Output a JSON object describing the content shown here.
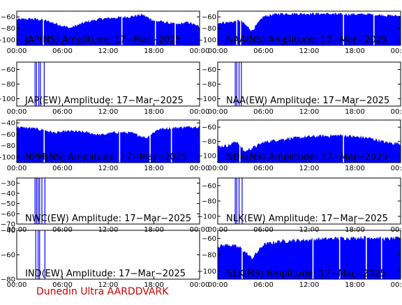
{
  "footer": "Dunedin Ultra AARDDVARK",
  "colors": {
    "trace": "#0000ff",
    "axis": "#000000",
    "footer": "#cc0000"
  },
  "chart_data": [
    {
      "type": "area",
      "title": "JAP(NS) Amplitude: 17-Mar-2025",
      "ylim": [
        -110,
        -50
      ],
      "yticks": [
        -100,
        -80,
        -60
      ],
      "xticks": [
        "00:00",
        "06:00",
        "12:00",
        "18:00",
        "00:00"
      ],
      "x_hours": [
        0,
        2,
        3.5,
        5,
        7,
        9,
        11,
        13,
        15,
        16.5,
        18,
        19.5,
        21,
        22.5,
        24
      ],
      "y": [
        -65,
        -64,
        -66,
        -72,
        -80,
        -70,
        -64,
        -62,
        -60,
        -57,
        -67,
        -70,
        -74,
        -70,
        -78
      ],
      "dropouts_hours": [
        3.5,
        13.8,
        18.2,
        20.8
      ]
    },
    {
      "type": "area",
      "title": "NAA(NS) Amplitude: 17-Mar-2025",
      "ylim": [
        -110,
        -50
      ],
      "yticks": [
        -100,
        -80,
        -60
      ],
      "xticks": [
        "00:00",
        "06:00",
        "12:00",
        "18:00",
        "00:00"
      ],
      "x_hours": [
        0,
        1.5,
        3,
        4.5,
        6,
        8,
        10,
        12,
        14,
        16,
        18,
        20,
        22,
        24
      ],
      "y": [
        -71,
        -70,
        -67,
        -85,
        -60,
        -55,
        -55,
        -55,
        -55,
        -56,
        -56,
        -56,
        -58,
        -59
      ],
      "dropouts_hours": [
        2.5,
        3.0,
        16.5,
        20.5
      ]
    },
    {
      "type": "area",
      "title": "JAP(EW) Amplitude: 17-Mar-2025",
      "ylim": [
        -110,
        -50
      ],
      "yticks": [
        -100,
        -80,
        -60
      ],
      "xticks": [
        "00:00",
        "06:00",
        "12:00",
        "18:00",
        "00:00"
      ],
      "x_hours": [],
      "y": [],
      "dropouts_hours": [],
      "spikes_hours": [
        2.4,
        2.6,
        2.9,
        3.1,
        3.6
      ]
    },
    {
      "type": "area",
      "title": "NAA(EW) Amplitude: 17-Mar-2025",
      "ylim": [
        -110,
        -50
      ],
      "yticks": [
        -100,
        -80,
        -60
      ],
      "xticks": [
        "00:00",
        "06:00",
        "12:00",
        "18:00",
        "00:00"
      ],
      "x_hours": [],
      "y": [],
      "dropouts_hours": [],
      "spikes_hours": [
        2.3,
        2.5,
        2.8,
        3.1
      ]
    },
    {
      "type": "area",
      "title": "NPM(NS) Amplitude: 17-Mar-2025",
      "ylim": [
        -110,
        -35
      ],
      "yticks": [
        -100,
        -80,
        -60,
        -40
      ],
      "xticks": [
        "00:00",
        "06:00",
        "12:00",
        "18:00",
        "00:00"
      ],
      "x_hours": [
        0,
        2,
        3.5,
        5,
        7,
        9,
        11,
        13,
        15,
        17,
        18.5,
        20,
        22,
        24
      ],
      "y": [
        -48,
        -50,
        -53,
        -58,
        -55,
        -57,
        -62,
        -57,
        -58,
        -67,
        -52,
        -50,
        -48,
        -47
      ],
      "dropouts_hours": [
        3.6,
        13.5,
        17.5,
        20.3
      ]
    },
    {
      "type": "area",
      "title": "NDK(NS) Amplitude: 17-Mar-2025",
      "ylim": [
        -110,
        -50
      ],
      "yticks": [
        -100,
        -80,
        -60
      ],
      "xticks": [
        "00:00",
        "06:00",
        "12:00",
        "18:00",
        "00:00"
      ],
      "x_hours": [
        0,
        1.5,
        2.5,
        3.5,
        4.5,
        6,
        8,
        10,
        12,
        14,
        16,
        18,
        20,
        22,
        24
      ],
      "y": [
        -88,
        -86,
        -80,
        -95,
        -90,
        -82,
        -78,
        -76,
        -74,
        -73,
        -72,
        -74,
        -76,
        -82,
        -84
      ],
      "dropouts_hours": [
        2.9,
        16.5
      ]
    },
    {
      "type": "area",
      "title": "NWC(EW) Amplitude: 17-Mar-2025",
      "ylim": [
        -70,
        -25
      ],
      "yticks": [
        -70,
        -60,
        -50,
        -40,
        -30
      ],
      "xticks": [
        "00:00",
        "06:00",
        "12:00",
        "18:00",
        "00:00"
      ],
      "x_hours": [],
      "y": [],
      "dropouts_hours": [],
      "spikes_hours": [
        2.4,
        2.6,
        2.8,
        3.0,
        3.3,
        3.7
      ]
    },
    {
      "type": "area",
      "title": "NLK(EW) Amplitude: 17-Mar-2025",
      "ylim": [
        -110,
        -50
      ],
      "yticks": [
        -100,
        -80,
        -60
      ],
      "xticks": [
        "00:00",
        "06:00",
        "12:00",
        "18:00",
        "00:00"
      ],
      "x_hours": [],
      "y": [],
      "dropouts_hours": [],
      "spikes_hours": [
        2.3,
        2.5,
        2.8,
        3.2
      ]
    },
    {
      "type": "area",
      "title": "IND(EW) Amplitude: 17-Mar-2025",
      "ylim": [
        -80,
        -40
      ],
      "yticks": [
        -80,
        -60,
        -40
      ],
      "xticks": [
        "00:00",
        "06:00",
        "12:00",
        "18:00",
        "00:00"
      ],
      "x_hours": [],
      "y": [],
      "dropouts_hours": [],
      "spikes_hours": [
        2.5,
        2.8,
        3.0,
        3.7
      ]
    },
    {
      "type": "area",
      "title": "NLK(NS) Amplitude: 17-Mar-2025",
      "ylim": [
        -110,
        -50
      ],
      "yticks": [
        -100,
        -80,
        -60
      ],
      "xticks": [
        "00:00",
        "06:00",
        "12:00",
        "18:00",
        "00:00"
      ],
      "x_hours": [
        0,
        1.5,
        3,
        4.5,
        6,
        8,
        10,
        12,
        14,
        16,
        18,
        20,
        22,
        24
      ],
      "y": [
        -70,
        -68,
        -72,
        -85,
        -68,
        -64,
        -63,
        -62,
        -61,
        -60,
        -60,
        -59,
        -61,
        -60
      ],
      "dropouts_hours": [
        3.2,
        12.5,
        16.0,
        19.5,
        21.5
      ]
    }
  ]
}
